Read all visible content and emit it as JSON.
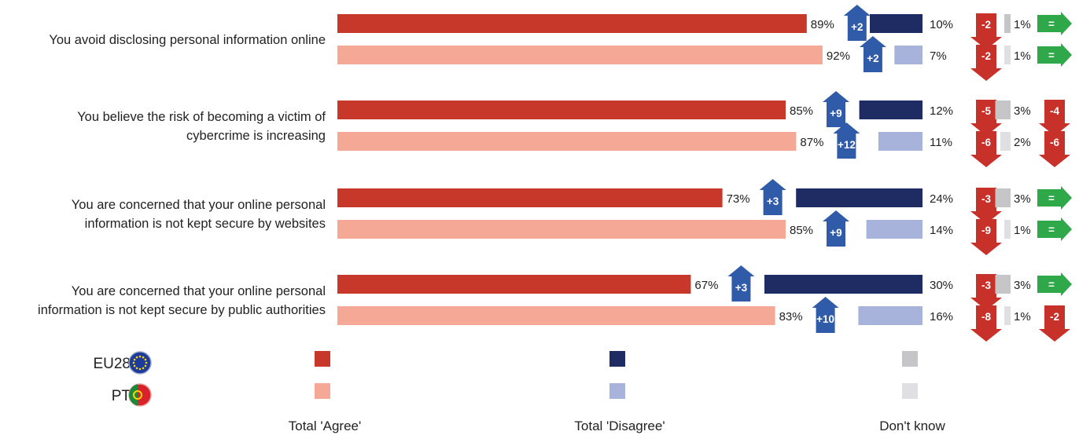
{
  "chart_data": {
    "type": "bar",
    "orientation": "horizontal",
    "stacked": true,
    "unit": "%",
    "categories": [
      [
        "You avoid disclosing personal information online"
      ],
      [
        "You believe the risk of becoming a victim of",
        "cybercrime is increasing"
      ],
      [
        "You are concerned that your online personal",
        "information is not kept secure by websites"
      ],
      [
        "You are concerned that your online personal",
        "information is not kept secure by public authorities"
      ]
    ],
    "groups": [
      "EU28",
      "PT"
    ],
    "series": [
      {
        "name": "Total 'Agree'",
        "group_colors": {
          "EU28": "#c8382a",
          "PT": "#f5a896"
        },
        "values": {
          "EU28": [
            89,
            85,
            73,
            67
          ],
          "PT": [
            92,
            87,
            85,
            83
          ]
        },
        "changes": {
          "EU28": [
            "+2",
            "+9",
            "+3",
            "+3"
          ],
          "PT": [
            "+2",
            "+12",
            "+9",
            "+10"
          ]
        }
      },
      {
        "name": "Total 'Disagree'",
        "group_colors": {
          "EU28": "#1f2b63",
          "PT": "#a8b3db"
        },
        "values": {
          "EU28": [
            10,
            12,
            24,
            30
          ],
          "PT": [
            7,
            11,
            14,
            16
          ]
        },
        "changes": {
          "EU28": [
            "-2",
            "-5",
            "-3",
            "-3"
          ],
          "PT": [
            "-2",
            "-6",
            "-9",
            "-8"
          ]
        }
      },
      {
        "name": "Don't know",
        "group_colors": {
          "EU28": "#c6c6c8",
          "PT": "#e0e0e2"
        },
        "values": {
          "EU28": [
            1,
            3,
            3,
            3
          ],
          "PT": [
            1,
            2,
            1,
            1
          ]
        },
        "changes": {
          "EU28": [
            "=",
            "-4",
            "=",
            "="
          ],
          "PT": [
            "=",
            "-6",
            "=",
            "-2"
          ]
        }
      }
    ],
    "change_colors": {
      "up": "#2f5ba8",
      "down": "#c8302a",
      "same": "#2fa84a"
    },
    "legend": {
      "position": "bottom",
      "groups": [
        {
          "label": "EU28",
          "icon": "eu-flag-icon"
        },
        {
          "label": "PT",
          "icon": "portugal-flag-icon"
        }
      ]
    }
  }
}
